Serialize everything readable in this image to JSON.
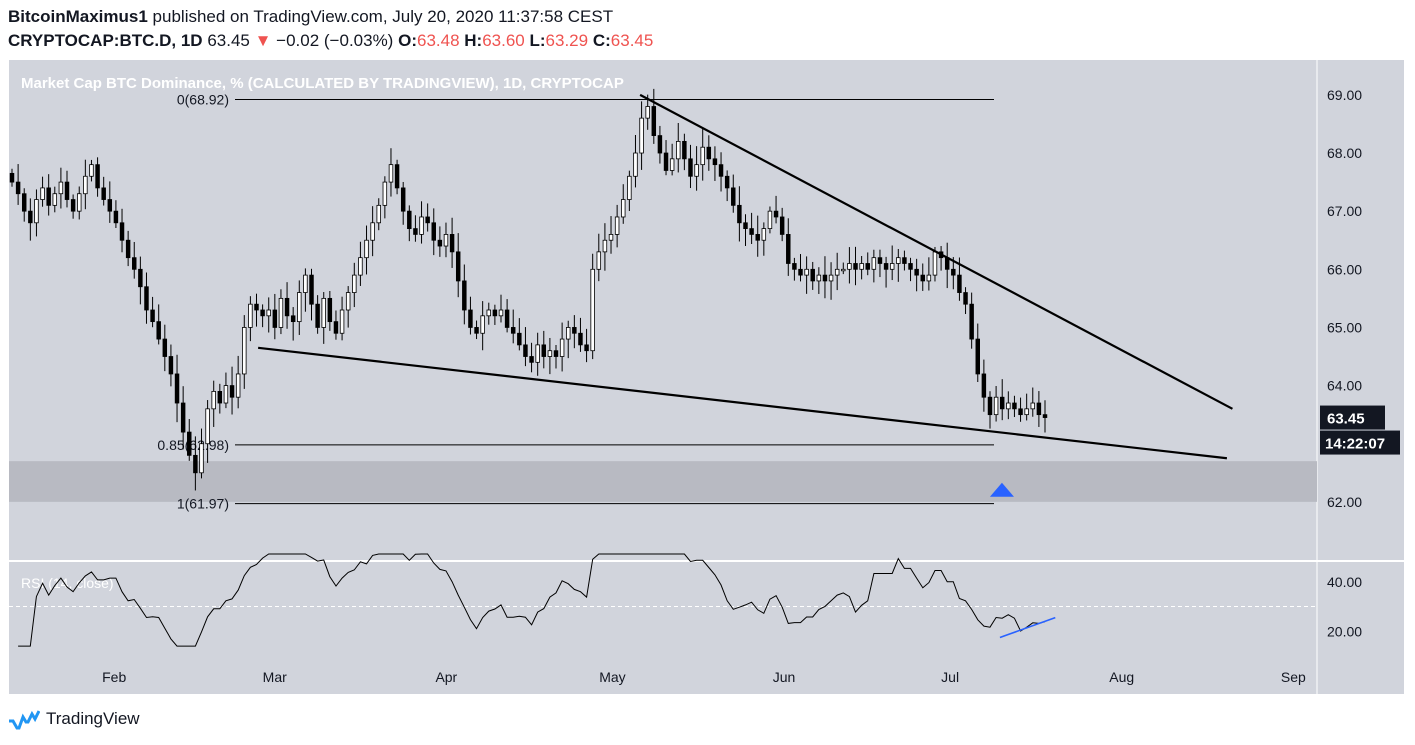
{
  "header": {
    "author": "BitcoinMaximus1",
    "published_text": "published on TradingView.com, July 20, 2020 11:37:58 CEST",
    "symbol": "CRYPTOCAP:BTC.D, 1D",
    "last": "63.45",
    "change_arrow": "▼",
    "change": "−0.02 (−0.03%)",
    "o_label": "O:",
    "o_value": "63.48",
    "h_label": "H:",
    "h_value": "63.60",
    "l_label": "L:",
    "l_value": "63.29",
    "c_label": "C:",
    "c_value": "63.45"
  },
  "footer": {
    "brand": "TradingView"
  },
  "colors": {
    "pane_bg": "#d1d4dc",
    "zone": "#b8bac2",
    "candle_up": "#ffffff",
    "candle_down": "#000000",
    "rsi_divergence": "#2962ff",
    "marker": "#2962ff",
    "label_bg": "#131722"
  },
  "chart_data": {
    "type": "candlestick",
    "title": "Market Cap BTC Dominance, % (CALCULATED BY TRADINGVIEW), 1D, CRYPTOCAP",
    "price_axis": {
      "ticks": [
        "69.00",
        "68.00",
        "67.00",
        "66.00",
        "65.00",
        "64.00",
        "62.00"
      ],
      "ylim": [
        61.0,
        69.6
      ]
    },
    "time_axis": {
      "labels": [
        "Feb",
        "Mar",
        "Apr",
        "May",
        "Jun",
        "Jul",
        "Aug",
        "Sep"
      ]
    },
    "last_price_label": "63.45",
    "countdown_label": "14:22:07",
    "fib_levels": [
      {
        "label": "0(68.92)",
        "value": 68.92
      },
      {
        "label": "0.85(62.98)",
        "value": 62.98
      },
      {
        "label": "1(61.97)",
        "value": 61.97
      }
    ],
    "support_zone": [
      62.0,
      62.7
    ],
    "trendlines": [
      {
        "name": "resistance",
        "points": [
          [
            "2020-05-06",
            69.0
          ],
          [
            "2020-08-21",
            63.6
          ]
        ]
      },
      {
        "name": "support",
        "points": [
          [
            "2020-02-27",
            64.65
          ],
          [
            "2020-08-20",
            62.75
          ]
        ]
      }
    ],
    "marker": {
      "type": "triangle-up",
      "date": "2020-07-10",
      "value": 62.5
    },
    "close_series": [
      67.5,
      67.3,
      67.0,
      66.8,
      67.2,
      67.4,
      67.1,
      67.3,
      67.5,
      67.2,
      67.0,
      67.3,
      67.6,
      67.8,
      67.4,
      67.2,
      67.0,
      66.8,
      66.5,
      66.2,
      66.0,
      65.7,
      65.3,
      65.1,
      64.8,
      64.5,
      64.2,
      63.7,
      63.2,
      62.8,
      62.5,
      63.0,
      63.6,
      63.9,
      63.7,
      64.0,
      63.8,
      64.2,
      65.0,
      65.4,
      65.3,
      65.2,
      65.3,
      65.0,
      65.5,
      65.2,
      65.1,
      65.6,
      65.9,
      65.4,
      65.0,
      65.5,
      65.1,
      64.9,
      65.3,
      65.6,
      65.9,
      66.2,
      66.5,
      66.8,
      67.1,
      67.5,
      67.8,
      67.4,
      67.0,
      66.7,
      66.6,
      66.9,
      66.8,
      66.5,
      66.4,
      66.6,
      66.3,
      65.8,
      65.3,
      65.0,
      64.9,
      65.2,
      65.3,
      65.2,
      65.3,
      65.0,
      64.9,
      64.7,
      64.5,
      64.4,
      64.7,
      64.5,
      64.6,
      64.5,
      64.8,
      65.0,
      64.9,
      64.7,
      64.6,
      66.0,
      66.3,
      66.5,
      66.6,
      66.9,
      67.2,
      67.6,
      68.0,
      68.6,
      68.8,
      68.3,
      68.0,
      67.7,
      67.9,
      68.2,
      67.9,
      67.6,
      67.8,
      68.1,
      67.9,
      67.8,
      67.6,
      67.4,
      67.1,
      66.8,
      66.7,
      66.6,
      66.5,
      66.7,
      67.0,
      66.9,
      66.6,
      66.1,
      66.0,
      65.9,
      66.0,
      65.8,
      65.9,
      65.8,
      65.9,
      66.0,
      66.0,
      66.1,
      66.0,
      66.1,
      66.0,
      66.2,
      66.1,
      66.0,
      66.1,
      66.2,
      66.1,
      66.0,
      65.9,
      65.8,
      65.9,
      66.3,
      66.2,
      66.0,
      65.9,
      65.6,
      65.4,
      64.8,
      64.2,
      63.8,
      63.5,
      63.8,
      63.6,
      63.7,
      63.6,
      63.5,
      63.6,
      63.7,
      63.5,
      63.45
    ],
    "rsi": {
      "label": "RSI (14, close)",
      "ticks": [
        "40.00",
        "20.00"
      ],
      "ylim": [
        10,
        48
      ],
      "levels": [
        30
      ],
      "divergence_line": [
        [
          "2020-07-10",
          17.5
        ],
        [
          "2020-07-20",
          25.5
        ]
      ]
    }
  }
}
